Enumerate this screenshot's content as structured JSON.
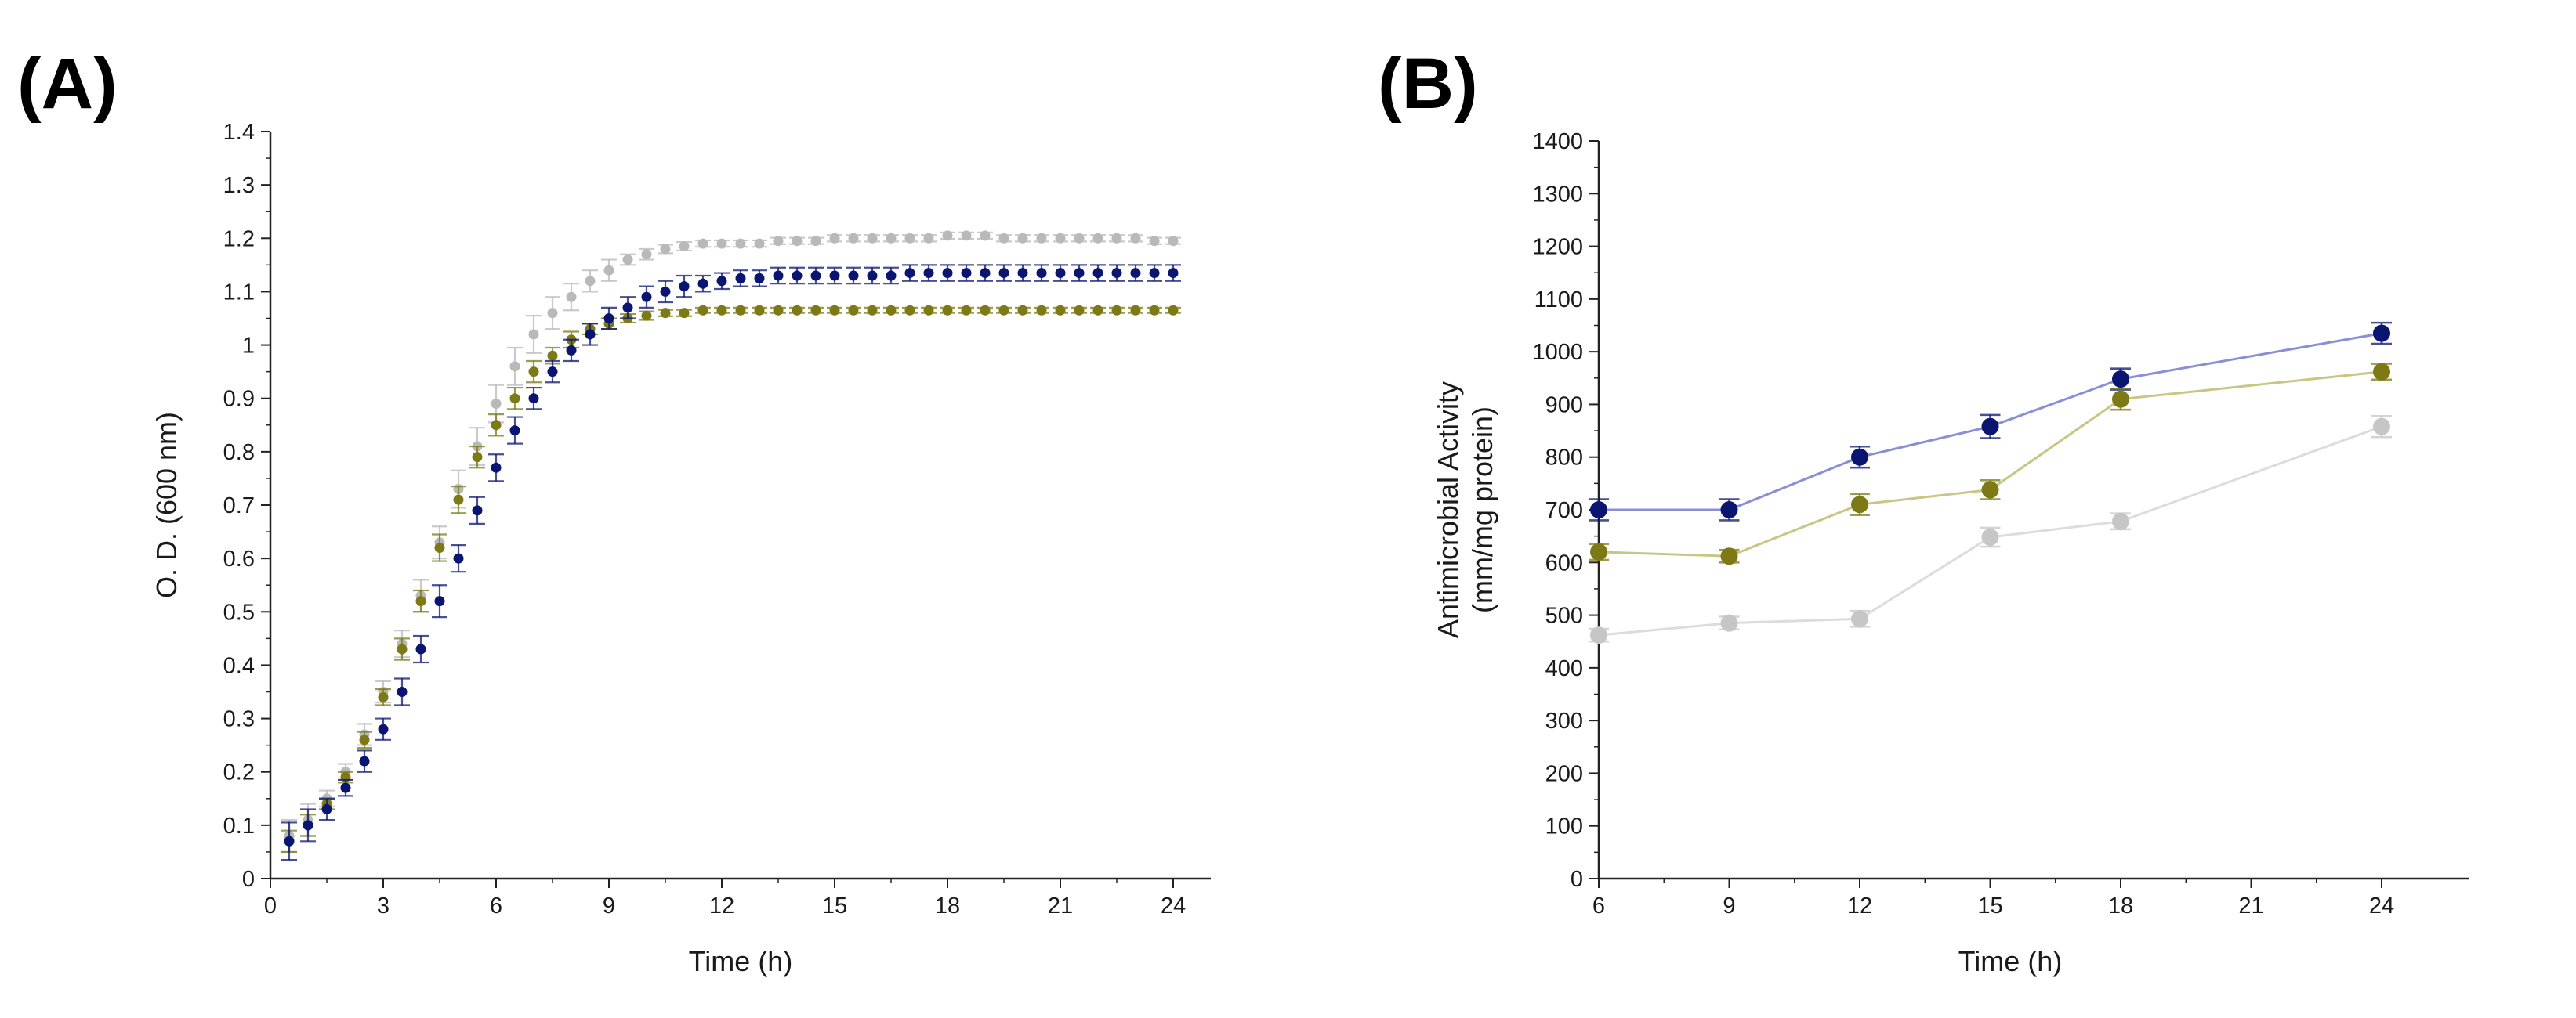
{
  "chart_data": [
    {
      "panel_label": "(A)",
      "type": "scatter",
      "title": "",
      "xlabel": "Time (h)",
      "ylabel": "O. D. (600 nm)",
      "xlim": [
        0,
        25
      ],
      "ylim": [
        0,
        1.4
      ],
      "xticks": [
        "0",
        "3",
        "6",
        "9",
        "12",
        "15",
        "18",
        "21",
        "24"
      ],
      "yticks": [
        "0",
        "0.1",
        "0.2",
        "0.3",
        "0.4",
        "0.5",
        "0.6",
        "0.7",
        "0.8",
        "0.9",
        "1",
        "1.1",
        "1.2",
        "1.3",
        "1.4"
      ],
      "legend": "none",
      "grid": false,
      "series": [
        {
          "name": "light gray",
          "color": "#b9b9b9",
          "x": [
            0.5,
            1,
            1.5,
            2,
            2.5,
            3,
            3.5,
            4,
            4.5,
            5,
            5.5,
            6,
            6.5,
            7,
            7.5,
            8,
            8.5,
            9,
            9.5,
            10,
            10.5,
            11,
            11.5,
            12,
            12.5,
            13,
            13.5,
            14,
            14.5,
            15,
            15.5,
            16,
            16.5,
            17,
            17.5,
            18,
            18.5,
            19,
            19.5,
            20,
            20.5,
            21,
            21.5,
            22,
            22.5,
            23,
            23.5,
            24
          ],
          "values": [
            0.08,
            0.11,
            0.15,
            0.2,
            0.27,
            0.35,
            0.44,
            0.53,
            0.63,
            0.73,
            0.81,
            0.89,
            0.96,
            1.02,
            1.06,
            1.09,
            1.12,
            1.14,
            1.16,
            1.17,
            1.18,
            1.185,
            1.19,
            1.19,
            1.19,
            1.19,
            1.195,
            1.195,
            1.195,
            1.2,
            1.2,
            1.2,
            1.2,
            1.2,
            1.2,
            1.205,
            1.205,
            1.205,
            1.2,
            1.2,
            1.2,
            1.2,
            1.2,
            1.2,
            1.2,
            1.2,
            1.195,
            1.195
          ],
          "error": [
            0.03,
            0.03,
            0.015,
            0.015,
            0.02,
            0.02,
            0.025,
            0.03,
            0.03,
            0.035,
            0.035,
            0.035,
            0.035,
            0.035,
            0.03,
            0.025,
            0.02,
            0.02,
            0.01,
            0.01,
            0.008,
            0.008,
            0.006,
            0.006,
            0.006,
            0.006,
            0.006,
            0.006,
            0.006,
            0.006,
            0.006,
            0.006,
            0.006,
            0.006,
            0.006,
            0.006,
            0.006,
            0.006,
            0.006,
            0.006,
            0.006,
            0.006,
            0.006,
            0.006,
            0.006,
            0.006,
            0.006,
            0.006
          ]
        },
        {
          "name": "olive",
          "color": "#7d7a15",
          "x": [
            0.5,
            1,
            1.5,
            2,
            2.5,
            3,
            3.5,
            4,
            4.5,
            5,
            5.5,
            6,
            6.5,
            7,
            7.5,
            8,
            8.5,
            9,
            9.5,
            10,
            10.5,
            11,
            11.5,
            12,
            12.5,
            13,
            13.5,
            14,
            14.5,
            15,
            15.5,
            16,
            16.5,
            17,
            17.5,
            18,
            18.5,
            19,
            19.5,
            20,
            20.5,
            21,
            21.5,
            22,
            22.5,
            23,
            23.5,
            24
          ],
          "values": [
            0.07,
            0.1,
            0.14,
            0.19,
            0.26,
            0.34,
            0.43,
            0.52,
            0.62,
            0.71,
            0.79,
            0.85,
            0.9,
            0.95,
            0.98,
            1.01,
            1.03,
            1.04,
            1.05,
            1.055,
            1.06,
            1.06,
            1.065,
            1.065,
            1.065,
            1.065,
            1.065,
            1.065,
            1.065,
            1.065,
            1.065,
            1.065,
            1.065,
            1.065,
            1.065,
            1.065,
            1.065,
            1.065,
            1.065,
            1.065,
            1.065,
            1.065,
            1.065,
            1.065,
            1.065,
            1.065,
            1.065,
            1.065
          ],
          "error": [
            0.02,
            0.02,
            0.01,
            0.01,
            0.015,
            0.015,
            0.02,
            0.02,
            0.025,
            0.025,
            0.02,
            0.02,
            0.02,
            0.02,
            0.015,
            0.015,
            0.01,
            0.01,
            0.008,
            0.008,
            0.006,
            0.006,
            0.005,
            0.005,
            0.005,
            0.005,
            0.005,
            0.005,
            0.005,
            0.005,
            0.005,
            0.005,
            0.005,
            0.005,
            0.005,
            0.005,
            0.005,
            0.005,
            0.005,
            0.005,
            0.005,
            0.005,
            0.005,
            0.005,
            0.005,
            0.005,
            0.005,
            0.005
          ]
        },
        {
          "name": "navy",
          "color": "#0a1572",
          "x": [
            0.5,
            1,
            1.5,
            2,
            2.5,
            3,
            3.5,
            4,
            4.5,
            5,
            5.5,
            6,
            6.5,
            7,
            7.5,
            8,
            8.5,
            9,
            9.5,
            10,
            10.5,
            11,
            11.5,
            12,
            12.5,
            13,
            13.5,
            14,
            14.5,
            15,
            15.5,
            16,
            16.5,
            17,
            17.5,
            18,
            18.5,
            19,
            19.5,
            20,
            20.5,
            21,
            21.5,
            22,
            22.5,
            23,
            23.5,
            24
          ],
          "values": [
            0.07,
            0.1,
            0.13,
            0.17,
            0.22,
            0.28,
            0.35,
            0.43,
            0.52,
            0.6,
            0.69,
            0.77,
            0.84,
            0.9,
            0.95,
            0.99,
            1.02,
            1.05,
            1.07,
            1.09,
            1.1,
            1.11,
            1.115,
            1.12,
            1.125,
            1.125,
            1.13,
            1.13,
            1.13,
            1.13,
            1.13,
            1.13,
            1.13,
            1.135,
            1.135,
            1.135,
            1.135,
            1.135,
            1.135,
            1.135,
            1.135,
            1.135,
            1.135,
            1.135,
            1.135,
            1.135,
            1.135,
            1.135
          ],
          "error": [
            0.035,
            0.03,
            0.02,
            0.015,
            0.02,
            0.02,
            0.025,
            0.025,
            0.03,
            0.025,
            0.025,
            0.025,
            0.025,
            0.02,
            0.02,
            0.02,
            0.02,
            0.02,
            0.02,
            0.02,
            0.02,
            0.02,
            0.015,
            0.015,
            0.015,
            0.015,
            0.015,
            0.015,
            0.015,
            0.015,
            0.015,
            0.015,
            0.015,
            0.015,
            0.015,
            0.015,
            0.015,
            0.015,
            0.015,
            0.015,
            0.015,
            0.015,
            0.015,
            0.015,
            0.015,
            0.015,
            0.015,
            0.015
          ]
        }
      ]
    },
    {
      "panel_label": "(B)",
      "type": "line",
      "title": "",
      "xlabel": "Time (h)",
      "ylabel": [
        "Antimicrobial Activity",
        "(mm/mg protein)"
      ],
      "xlim": [
        6,
        26
      ],
      "ylim": [
        0,
        1400
      ],
      "xticks": [
        "6",
        "9",
        "12",
        "15",
        "18",
        "21",
        "24"
      ],
      "yticks": [
        "0",
        "100",
        "200",
        "300",
        "400",
        "500",
        "600",
        "700",
        "800",
        "900",
        "1000",
        "1100",
        "1200",
        "1300",
        "1400"
      ],
      "legend": "none",
      "grid": false,
      "series": [
        {
          "name": "navy",
          "color": "#0a1572",
          "line_color": "#8a8ed6",
          "x": [
            6,
            9,
            12,
            15,
            18,
            24
          ],
          "values": [
            700,
            700,
            800,
            858,
            948,
            1035
          ],
          "error": [
            20,
            20,
            20,
            22,
            20,
            20
          ]
        },
        {
          "name": "olive",
          "color": "#7d7a15",
          "line_color": "#c9c685",
          "x": [
            6,
            9,
            12,
            15,
            18,
            24
          ],
          "values": [
            620,
            612,
            710,
            738,
            910,
            962
          ],
          "error": [
            15,
            12,
            20,
            18,
            20,
            15
          ]
        },
        {
          "name": "light gray",
          "color": "#c6c6c6",
          "line_color": "#dcdcdc",
          "x": [
            6,
            9,
            12,
            15,
            18,
            24
          ],
          "values": [
            462,
            485,
            493,
            648,
            678,
            858
          ],
          "error": [
            12,
            12,
            15,
            18,
            15,
            20
          ]
        }
      ]
    }
  ]
}
